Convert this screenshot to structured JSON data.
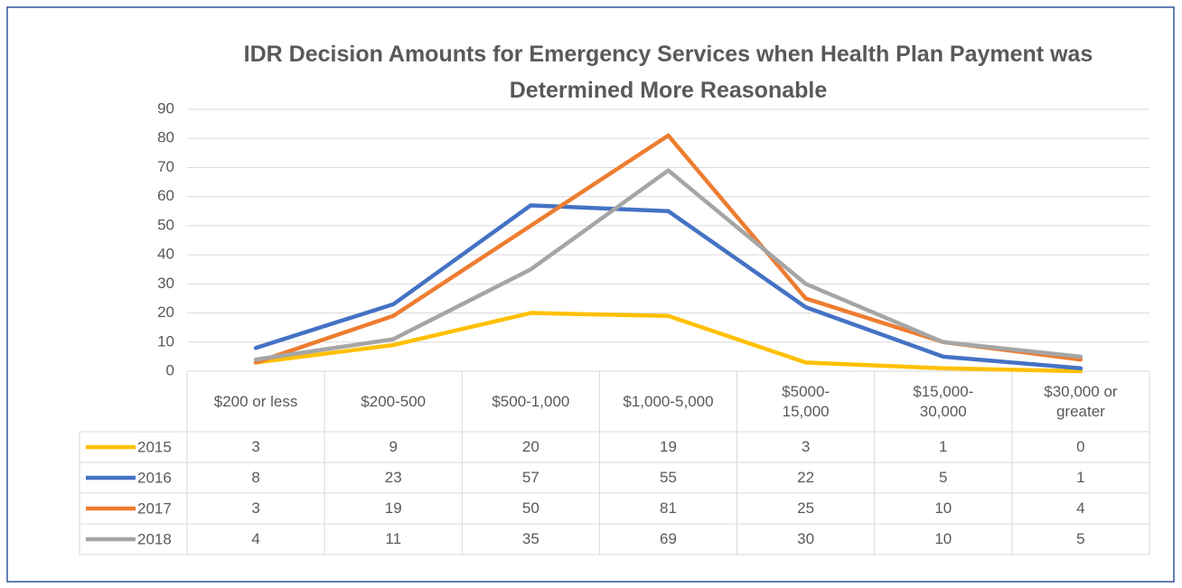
{
  "chart_data": {
    "type": "line",
    "title": "IDR Decision Amounts for Emergency Services when Health Plan Payment was Determined More Reasonable",
    "categories": [
      "$200 or less",
      "$200-500",
      "$500-1,000",
      "$1,000-5,000",
      "$5000-\n15,000",
      "$15,000-\n30,000",
      "$30,000 or\ngreater"
    ],
    "series": [
      {
        "name": "2015",
        "color": "#ffc000",
        "values": [
          3,
          9,
          20,
          19,
          3,
          1,
          0
        ]
      },
      {
        "name": "2016",
        "color": "#4472c4",
        "values": [
          8,
          23,
          57,
          55,
          22,
          5,
          1
        ]
      },
      {
        "name": "2017",
        "color": "#ed7d31",
        "values": [
          3,
          19,
          50,
          81,
          25,
          10,
          4
        ]
      },
      {
        "name": "2018",
        "color": "#a5a5a5",
        "values": [
          4,
          11,
          35,
          69,
          30,
          10,
          5
        ]
      }
    ],
    "ylim": [
      0,
      90
    ],
    "yticks": [
      0,
      10,
      20,
      30,
      40,
      50,
      60,
      70,
      80,
      90
    ],
    "grid": true
  }
}
